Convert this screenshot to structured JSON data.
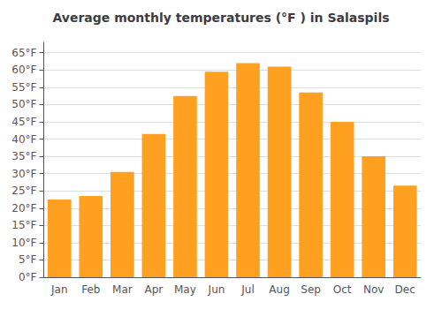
{
  "chart_data": {
    "type": "bar",
    "title": "Average monthly temperatures (°F ) in Salaspils",
    "categories": [
      "Jan",
      "Feb",
      "Mar",
      "Apr",
      "May",
      "Jun",
      "Jul",
      "Aug",
      "Sep",
      "Oct",
      "Nov",
      "Dec"
    ],
    "values": [
      22.5,
      23.5,
      30.5,
      41.5,
      52.5,
      59.5,
      62.0,
      61.0,
      53.5,
      45.0,
      35.0,
      26.5
    ],
    "color": "#FFA020",
    "ylim": [
      0,
      68
    ],
    "yticks": [
      {
        "value": 0,
        "label": "0°F"
      },
      {
        "value": 5,
        "label": "5°F"
      },
      {
        "value": 10,
        "label": "10°F"
      },
      {
        "value": 15,
        "label": "15°F"
      },
      {
        "value": 20,
        "label": "20°F"
      },
      {
        "value": 25,
        "label": "25°F"
      },
      {
        "value": 30,
        "label": "30°F"
      },
      {
        "value": 35,
        "label": "35°F"
      },
      {
        "value": 40,
        "label": "40°F"
      },
      {
        "value": 45,
        "label": "45°F"
      },
      {
        "value": 50,
        "label": "50°F"
      },
      {
        "value": 55,
        "label": "55°F"
      },
      {
        "value": 60,
        "label": "60°F"
      },
      {
        "value": 65,
        "label": "65°F"
      }
    ],
    "grid": true
  }
}
